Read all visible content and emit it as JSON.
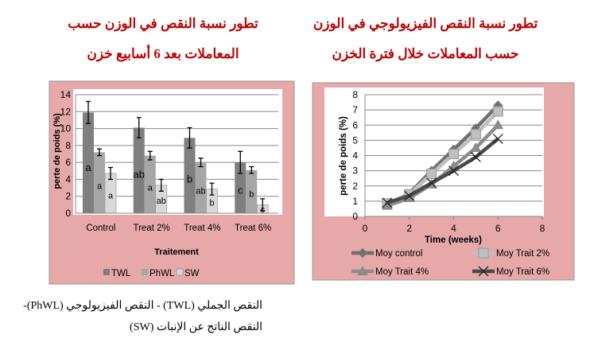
{
  "titles": {
    "left_line1": "تطور نسبة النقص في الوزن حسب",
    "left_line2": "المعاملات بعد 6 أسابيع خزن",
    "right_line1": "تطور نسبة النقص الفيزيولوجي في الوزن",
    "right_line2": "حسب المعاملات خلال فترة الخزن"
  },
  "caption": {
    "line1": "النقص الجملي (TWL) - النقص الفيزيولوجي (PhWL)-",
    "line2": "النقص الناتج عن الإنبات (SW)"
  },
  "chart_data": [
    {
      "type": "bar",
      "title": "",
      "xlabel": "Traitement",
      "ylabel": "perte de poids (%)",
      "ylim": [
        0,
        14
      ],
      "yticks": [
        0,
        2,
        4,
        6,
        8,
        10,
        12,
        14
      ],
      "grid": true,
      "legend": "bottom",
      "categories": [
        "Control",
        "Treat 2%",
        "Treat 4%",
        "Treat 6%"
      ],
      "series": [
        {
          "name": "TWL",
          "color": "#7f7f7f",
          "values": [
            11.9,
            10.1,
            8.9,
            6.0
          ],
          "errors": [
            1.3,
            1.2,
            1.2,
            1.3
          ],
          "letters": [
            "a",
            "ab",
            "b",
            "c"
          ]
        },
        {
          "name": "PhWL",
          "color": "#a6a6a6",
          "values": [
            7.2,
            6.8,
            6.0,
            5.1
          ],
          "errors": [
            0.4,
            0.5,
            0.5,
            0.4
          ],
          "letters": [
            "a",
            "a",
            "ab",
            "b"
          ]
        },
        {
          "name": "SW",
          "color": "#d9d9d9",
          "values": [
            4.7,
            3.3,
            2.85,
            1.0
          ],
          "errors": [
            0.7,
            0.7,
            0.7,
            0.7
          ],
          "letters": [
            "a",
            "ab",
            "b",
            "c"
          ]
        }
      ]
    },
    {
      "type": "line",
      "title": "",
      "xlabel": "Time (weeks)",
      "ylabel": "perte de poids (%)",
      "xlim": [
        0,
        8
      ],
      "ylim": [
        0,
        8
      ],
      "xticks": [
        0,
        2,
        4,
        6,
        8
      ],
      "yticks": [
        0,
        1,
        2,
        3,
        4,
        5,
        6,
        7,
        8
      ],
      "grid": true,
      "legend": "bottom",
      "x": [
        1,
        2,
        3,
        4,
        5,
        6
      ],
      "series": [
        {
          "name": "Moy control",
          "color": "#707070",
          "marker": "diamond",
          "values": [
            0.8,
            1.5,
            3.0,
            4.4,
            5.8,
            7.3
          ]
        },
        {
          "name": "Moy Trait 2%",
          "color": "#bfbfbf",
          "marker": "square",
          "values": [
            0.85,
            1.45,
            2.8,
            4.1,
            5.4,
            6.9
          ]
        },
        {
          "name": "Moy Trait 4%",
          "color": "#8c8c8c",
          "marker": "triangle",
          "values": [
            0.7,
            1.2,
            2.1,
            3.3,
            4.5,
            6.0
          ]
        },
        {
          "name": "Moy Trait 6%",
          "color": "#4a4a4a",
          "marker": "x",
          "values": [
            0.9,
            1.35,
            2.2,
            3.0,
            3.9,
            5.1
          ]
        }
      ]
    }
  ]
}
